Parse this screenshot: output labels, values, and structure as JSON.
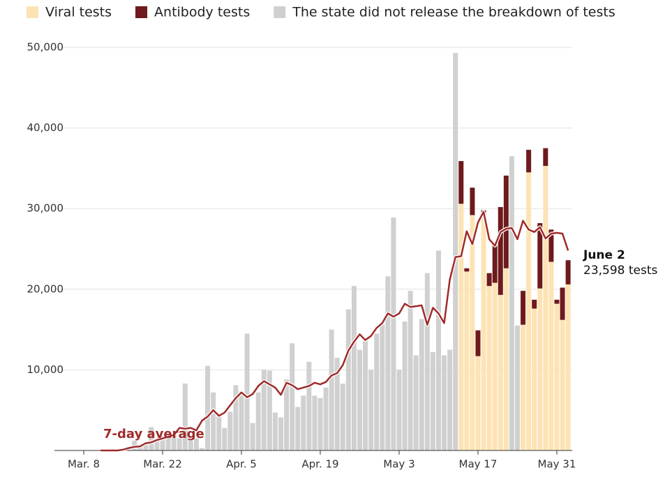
{
  "chart_data": {
    "type": "bar",
    "stacked": true,
    "categories": [
      "Mar. 8",
      null,
      null,
      null,
      null,
      null,
      null,
      null,
      null,
      null,
      null,
      null,
      null,
      null,
      "Mar. 22",
      null,
      null,
      null,
      null,
      null,
      null,
      null,
      null,
      null,
      null,
      null,
      null,
      null,
      "Apr. 5",
      null,
      null,
      null,
      null,
      null,
      null,
      null,
      null,
      null,
      null,
      null,
      null,
      null,
      "Apr. 19",
      null,
      null,
      null,
      null,
      null,
      null,
      null,
      null,
      null,
      null,
      null,
      null,
      null,
      "May 3",
      null,
      null,
      null,
      null,
      null,
      null,
      null,
      null,
      null,
      null,
      null,
      null,
      null,
      "May 17",
      null,
      null,
      null,
      null,
      null,
      null,
      null,
      null,
      null,
      null,
      null,
      null,
      null,
      "May 31",
      null,
      null
    ],
    "series": [
      {
        "name": "Viral tests",
        "color": "#fde3b4",
        "values": [
          null,
          null,
          null,
          null,
          null,
          null,
          null,
          null,
          null,
          null,
          null,
          null,
          null,
          null,
          null,
          null,
          null,
          null,
          null,
          null,
          null,
          null,
          null,
          null,
          null,
          null,
          null,
          null,
          null,
          null,
          null,
          null,
          null,
          null,
          null,
          null,
          null,
          null,
          null,
          null,
          null,
          null,
          null,
          null,
          null,
          null,
          null,
          null,
          null,
          null,
          null,
          null,
          null,
          null,
          null,
          null,
          null,
          null,
          null,
          null,
          null,
          null,
          null,
          null,
          null,
          null,
          null,
          30600,
          22200,
          29200,
          11700,
          29500,
          20400,
          20800,
          19300,
          22600,
          null,
          null,
          15600,
          34500,
          17600,
          20100,
          35300,
          23400,
          18200,
          16200,
          20600
        ]
      },
      {
        "name": "Antibody tests",
        "color": "#6e1a1c",
        "values": [
          null,
          null,
          null,
          null,
          null,
          null,
          null,
          null,
          null,
          null,
          null,
          null,
          null,
          null,
          null,
          null,
          null,
          null,
          null,
          null,
          null,
          null,
          null,
          null,
          null,
          null,
          null,
          null,
          null,
          null,
          null,
          null,
          null,
          null,
          null,
          null,
          null,
          null,
          null,
          null,
          null,
          null,
          null,
          null,
          null,
          null,
          null,
          null,
          null,
          null,
          null,
          null,
          null,
          null,
          null,
          null,
          null,
          null,
          null,
          null,
          null,
          null,
          null,
          null,
          null,
          null,
          null,
          5300,
          400,
          3400,
          3200,
          300,
          1600,
          4600,
          10900,
          11500,
          null,
          null,
          4200,
          2800,
          1100,
          8100,
          2200,
          4000,
          500,
          4000,
          3000
        ]
      },
      {
        "name": "The state did not release the breakdown of tests",
        "color": "#d0d0d0",
        "values": [
          0,
          0,
          0,
          0,
          0,
          0,
          0,
          0,
          100,
          1200,
          600,
          1000,
          2900,
          1500,
          1800,
          1600,
          2000,
          1500,
          8300,
          1200,
          1500,
          300,
          10500,
          7200,
          4500,
          2800,
          4800,
          8100,
          7300,
          14500,
          3400,
          7200,
          10000,
          9900,
          4700,
          4100,
          8800,
          13300,
          5400,
          6800,
          11000,
          6800,
          6500,
          7800,
          15000,
          11500,
          8300,
          17500,
          20400,
          12500,
          13800,
          10000,
          14500,
          15600,
          21600,
          28900,
          10000,
          16000,
          19800,
          11800,
          16300,
          22000,
          12200,
          24800,
          11800,
          12500,
          49300,
          null,
          null,
          null,
          null,
          null,
          null,
          null,
          null,
          null,
          36500,
          15500,
          null,
          null,
          null,
          null,
          null,
          null,
          null,
          null,
          null
        ]
      }
    ],
    "line": {
      "name": "7-day average",
      "color": "#a02a2a",
      "values": [
        null,
        null,
        null,
        0,
        0,
        0,
        0,
        100,
        300,
        450,
        500,
        900,
        1000,
        1300,
        1500,
        1700,
        1900,
        2800,
        2700,
        2800,
        2500,
        3700,
        4200,
        5000,
        4300,
        4700,
        5600,
        6500,
        7200,
        6600,
        7000,
        8000,
        8600,
        8200,
        7800,
        6900,
        8400,
        8100,
        7600,
        7800,
        8000,
        8400,
        8200,
        8500,
        9300,
        9600,
        10600,
        12400,
        13500,
        14400,
        13700,
        14200,
        15200,
        15800,
        17000,
        16600,
        17000,
        18200,
        17800,
        17900,
        18000,
        15600,
        17700,
        17000,
        15800,
        21200,
        24000,
        24100,
        27200,
        25600,
        28300,
        29600,
        26200,
        25400,
        27100,
        27500,
        27600,
        26200,
        28500,
        27400,
        27100,
        27700,
        26300,
        26900,
        27000,
        26900,
        24800
      ]
    },
    "end_label": {
      "date": "June 2",
      "text": "23,598 tests"
    },
    "ylim": [
      0,
      50000
    ],
    "yticks": [
      {
        "value": 10000,
        "label": "10,000"
      },
      {
        "value": 20000,
        "label": "20,000"
      },
      {
        "value": 30000,
        "label": "30,000"
      },
      {
        "value": 40000,
        "label": "40,000"
      },
      {
        "value": 50000,
        "label": "50,000"
      }
    ],
    "grid": true
  }
}
